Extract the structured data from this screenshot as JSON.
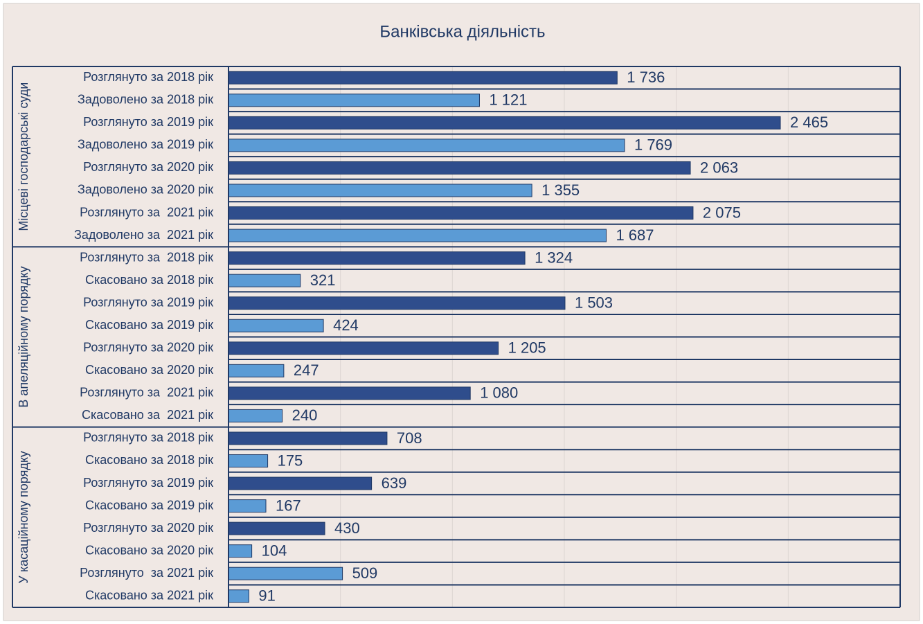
{
  "chart_data": {
    "type": "bar",
    "title": "Банківська діяльність",
    "xlim": [
      0,
      3000
    ],
    "xticks": [
      0,
      500,
      1000,
      1500,
      2000,
      2500,
      3000
    ],
    "grid": true,
    "groups": [
      {
        "name": "Місцеві господарські суди",
        "categories": [
          "Розглянуто за 2018 рік",
          "Задоволено за 2018 рік",
          "Розглянуто за 2019 рік",
          "Задоволено за 2019 рік",
          "Розглянуто за 2020 рік",
          "Задоволено за 2020 рік",
          "Розглянуто за  2021 рік",
          "Задоволено за  2021 рік"
        ],
        "values": [
          1736,
          1121,
          2465,
          1769,
          2063,
          1355,
          2075,
          1687
        ],
        "value_labels": [
          "1 736",
          "1 121",
          "2 465",
          "1 769",
          "2 063",
          "1 355",
          "2 075",
          "1 687"
        ],
        "colors": [
          "#2f4d8c",
          "#5b9bd5",
          "#2f4d8c",
          "#5b9bd5",
          "#2f4d8c",
          "#5b9bd5",
          "#2f4d8c",
          "#5b9bd5"
        ]
      },
      {
        "name": "В апеляційному порядку",
        "categories": [
          "Розглянуто за  2018 рік",
          "Скасовано за 2018 рік",
          "Розглянуто за 2019 рік",
          "Скасовано за 2019 рік",
          "Розглянуто за 2020 рік",
          "Скасовано за 2020 рік",
          "Розглянуто за  2021 рік",
          "Скасовано за  2021 рік"
        ],
        "values": [
          1324,
          321,
          1503,
          424,
          1205,
          247,
          1080,
          240
        ],
        "value_labels": [
          "1 324",
          "321",
          "1 503",
          "424",
          "1 205",
          "247",
          "1 080",
          "240"
        ],
        "colors": [
          "#2f4d8c",
          "#5b9bd5",
          "#2f4d8c",
          "#5b9bd5",
          "#2f4d8c",
          "#5b9bd5",
          "#2f4d8c",
          "#5b9bd5"
        ]
      },
      {
        "name": "У касаційному порядку",
        "categories": [
          "Розглянуто за 2018 рік",
          "Скасовано за 2018 рік",
          "Розглянуто за 2019 рік",
          "Скасовано за 2019 рік",
          "Розглянуто за 2020 рік",
          "Скасовано за 2020 рік",
          "Розглянуто  за 2021 рік",
          "Скасовано за 2021 рік"
        ],
        "values": [
          708,
          175,
          639,
          167,
          430,
          104,
          509,
          91
        ],
        "value_labels": [
          "708",
          "175",
          "639",
          "167",
          "430",
          "104",
          "509",
          "91"
        ],
        "colors": [
          "#2f4d8c",
          "#5b9bd5",
          "#2f4d8c",
          "#5b9bd5",
          "#2f4d8c",
          "#5b9bd5",
          "#5b9bd5",
          "#5b9bd5"
        ]
      }
    ]
  }
}
